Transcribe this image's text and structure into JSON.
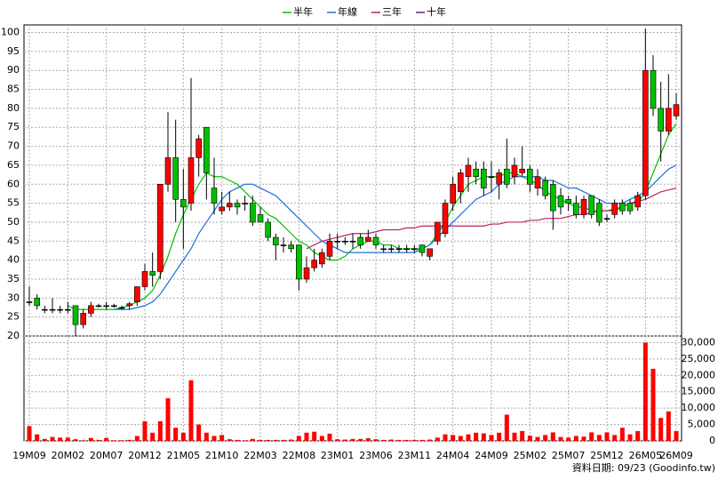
{
  "chart_data": {
    "type": "candlestick",
    "categories": [
      "19M09",
      null,
      null,
      null,
      null,
      "20M02",
      null,
      null,
      null,
      null,
      "20M07",
      null,
      null,
      null,
      null,
      "20M12",
      null,
      null,
      null,
      null,
      "21M05",
      null,
      null,
      null,
      null,
      "21M10",
      null,
      null,
      null,
      null,
      "22M03",
      null,
      null,
      null,
      null,
      "22M08",
      null,
      null,
      null,
      null,
      "23M01",
      null,
      null,
      null,
      null,
      "23M06",
      null,
      null,
      null,
      null,
      "23M11",
      null,
      null,
      null,
      null,
      "24M04",
      null,
      null,
      null,
      null,
      "24M09",
      null,
      null,
      null,
      null,
      "25M02",
      null,
      null,
      null,
      null,
      "25M07",
      null,
      null,
      null,
      null,
      "25M12",
      null,
      null,
      null,
      null,
      "26M05",
      null,
      null,
      null,
      "26M09"
    ],
    "open": [
      29,
      30,
      27,
      27,
      27,
      27,
      28,
      23,
      26,
      28,
      28,
      28,
      27.5,
      28,
      29,
      33,
      37,
      37,
      60,
      67,
      56,
      55,
      67,
      75,
      59,
      53,
      54,
      55,
      55,
      55,
      52,
      50,
      46,
      44,
      44,
      44,
      35,
      38,
      39,
      41,
      45,
      45,
      45,
      46,
      45,
      46,
      43,
      43,
      43,
      43,
      43,
      44,
      41,
      45,
      47,
      55,
      58,
      62,
      64,
      64,
      62,
      60,
      64,
      62,
      63,
      64,
      59,
      61,
      60,
      57,
      56,
      55,
      52,
      57,
      55,
      51,
      52,
      55,
      55,
      54,
      57,
      90,
      80,
      74,
      78
    ],
    "high": [
      33,
      31,
      28,
      30,
      28,
      29,
      28,
      27,
      29,
      28.5,
      29,
      28.5,
      28,
      29,
      33,
      39,
      42,
      60,
      79,
      77,
      64,
      88,
      73,
      75,
      67,
      58,
      58,
      56,
      57,
      57,
      54,
      51,
      47,
      46,
      45,
      44,
      41,
      43,
      43,
      47,
      47,
      46,
      47,
      47,
      48,
      47,
      44,
      44,
      44,
      44,
      44,
      44,
      43,
      50,
      56,
      62,
      64,
      67,
      66,
      66,
      66,
      64,
      72,
      67,
      70,
      65,
      64,
      62,
      61,
      59,
      57,
      57,
      57,
      57,
      56,
      52,
      56,
      56,
      56,
      58,
      101,
      94,
      87,
      89,
      84
    ],
    "low": [
      28,
      27,
      26,
      26,
      26,
      26,
      20,
      22,
      25,
      27.5,
      27,
      27.5,
      27,
      27,
      28,
      32,
      33,
      35,
      58,
      50,
      43,
      53,
      62,
      56,
      52,
      52,
      53,
      52,
      53,
      49,
      50,
      45,
      40,
      42,
      42,
      32,
      34,
      37,
      38,
      40,
      43,
      44,
      43,
      43,
      45,
      43,
      42,
      42,
      42,
      42,
      42,
      41,
      40,
      44,
      46,
      53,
      55,
      58,
      60,
      57,
      58,
      56,
      59,
      60,
      62,
      58,
      57,
      56,
      48,
      52,
      53,
      51,
      51,
      51,
      49,
      50,
      51,
      52,
      52,
      53,
      56,
      78,
      66,
      73,
      77
    ],
    "close": [
      29,
      28,
      27,
      27,
      27,
      27,
      23,
      26,
      28,
      28,
      28,
      28,
      27.5,
      28.5,
      33,
      37,
      36,
      60,
      67,
      56,
      54,
      67,
      72,
      63,
      55,
      54,
      55,
      54,
      55,
      50,
      50,
      46,
      44,
      44,
      43,
      35,
      38,
      40,
      42,
      45,
      45,
      45,
      45,
      44,
      46,
      44,
      43,
      43,
      43,
      43,
      43,
      42,
      43,
      50,
      55,
      60,
      63,
      65,
      62,
      59,
      62,
      63,
      60,
      65,
      64,
      60,
      62,
      57,
      53,
      54,
      55,
      52,
      56,
      52,
      50,
      51,
      55,
      53,
      53,
      57,
      90,
      80,
      74,
      80,
      81
    ],
    "up_color": "#ff0000",
    "down_color": "#00c000",
    "ylim": [
      20,
      102
    ],
    "yticks": [
      20,
      25,
      30,
      35,
      40,
      45,
      50,
      55,
      60,
      65,
      70,
      75,
      80,
      85,
      90,
      95,
      100
    ],
    "grid": true,
    "series": [
      {
        "name": "半年",
        "color": "#00c000",
        "values": [
          null,
          null,
          null,
          null,
          null,
          28,
          27,
          27,
          27,
          27,
          27,
          27,
          27.5,
          28,
          29,
          30,
          32,
          36,
          41,
          47,
          52,
          56,
          60,
          63,
          62,
          62,
          61,
          60,
          58,
          56,
          54,
          52,
          51,
          49,
          47,
          45,
          44,
          42,
          41,
          40,
          40,
          41,
          43,
          44,
          45,
          45,
          44,
          44,
          43,
          43,
          43,
          43,
          44,
          47,
          50,
          54,
          57,
          60,
          61,
          62,
          62,
          62,
          63,
          63,
          62,
          61,
          60,
          58,
          57,
          56,
          55,
          54,
          54,
          53,
          53,
          53,
          53,
          54,
          55,
          55,
          58,
          63,
          68,
          73,
          76
        ]
      },
      {
        "name": "年線",
        "color": "#1f6fd8",
        "values": [
          null,
          null,
          null,
          null,
          null,
          null,
          null,
          null,
          null,
          null,
          null,
          27,
          27,
          27,
          27.5,
          28,
          29,
          31,
          34,
          37,
          40,
          43,
          47,
          50,
          53,
          56,
          58,
          59,
          60,
          60,
          59,
          58,
          57,
          55,
          53,
          51,
          49,
          47,
          45,
          44,
          43,
          42,
          42,
          42,
          42,
          42,
          42,
          42,
          42,
          42,
          42,
          43,
          44,
          46,
          48,
          50,
          52,
          54,
          56,
          57,
          58,
          60,
          61,
          62,
          62,
          62,
          62,
          61,
          61,
          60,
          59,
          59,
          58,
          57,
          56,
          55,
          55,
          55,
          56,
          57,
          58,
          60,
          62,
          64,
          65
        ]
      },
      {
        "name": "三年",
        "color": "#c0206a",
        "values": [
          null,
          null,
          null,
          null,
          null,
          null,
          null,
          null,
          null,
          null,
          null,
          null,
          null,
          null,
          null,
          null,
          null,
          null,
          null,
          null,
          null,
          null,
          null,
          null,
          null,
          null,
          null,
          null,
          null,
          null,
          null,
          null,
          null,
          null,
          null,
          null,
          43,
          44,
          45,
          45.5,
          46,
          46.5,
          47,
          47,
          47,
          47.5,
          48,
          48,
          48,
          48.5,
          48.5,
          49,
          49,
          49,
          49,
          49,
          49,
          49,
          49,
          49,
          49.5,
          49.5,
          50,
          50,
          50,
          50.5,
          50.5,
          51,
          51,
          51,
          51.5,
          52,
          52,
          52.5,
          53,
          53,
          53.5,
          54,
          55,
          55.5,
          56,
          57,
          58,
          58.5,
          59
        ]
      },
      {
        "name": "十年",
        "color": "#602080",
        "values": [
          null,
          null,
          null,
          null,
          null,
          null,
          null,
          null,
          null,
          null,
          null,
          null,
          null,
          null,
          null,
          null,
          null,
          null,
          null,
          null,
          null,
          null,
          null,
          null,
          null,
          null,
          null,
          null,
          null,
          null,
          null,
          null,
          null,
          null,
          null,
          null,
          null,
          null,
          null,
          null,
          null,
          null,
          null,
          null,
          null,
          null,
          null,
          null,
          null,
          null,
          null,
          null,
          null,
          null,
          null,
          null,
          null,
          null,
          null,
          null,
          null,
          null,
          null,
          null,
          null,
          null,
          null,
          null,
          null,
          null,
          null,
          null,
          null,
          null,
          null,
          null,
          null,
          null,
          null,
          null,
          null,
          null,
          null,
          null,
          null
        ]
      }
    ],
    "volume": {
      "color": "#ff0000",
      "values": [
        4500,
        2000,
        600,
        1200,
        1000,
        1000,
        500,
        200,
        900,
        300,
        900,
        200,
        200,
        300,
        1500,
        6000,
        2500,
        6000,
        13000,
        4000,
        2500,
        18500,
        5000,
        2500,
        1500,
        1800,
        500,
        300,
        200,
        600,
        300,
        300,
        300,
        300,
        400,
        1500,
        2500,
        2800,
        1500,
        2200,
        500,
        400,
        600,
        600,
        800,
        500,
        300,
        400,
        300,
        300,
        300,
        300,
        400,
        1000,
        2000,
        1800,
        1500,
        2000,
        2500,
        2300,
        1800,
        2500,
        8000,
        2500,
        3000,
        1600,
        1200,
        1800,
        2600,
        1200,
        1000,
        1500,
        1300,
        2600,
        1800,
        2600,
        1800,
        4000,
        2000,
        3000,
        30000,
        22000,
        7000,
        9000,
        3000
      ],
      "ylim": [
        0,
        32000
      ],
      "yticks": [
        0,
        {
          "value": 5000,
          "label": "5,000"
        },
        {
          "value": 10000,
          "label": "10,000"
        },
        {
          "value": 15000,
          "label": "15,000"
        },
        {
          "value": 20000,
          "label": "20,000"
        },
        {
          "value": 25000,
          "label": "25,000"
        },
        {
          "value": 30000,
          "label": "30,000"
        }
      ]
    },
    "footer": "資料日期: 09/23 (Goodinfo.tw)"
  }
}
